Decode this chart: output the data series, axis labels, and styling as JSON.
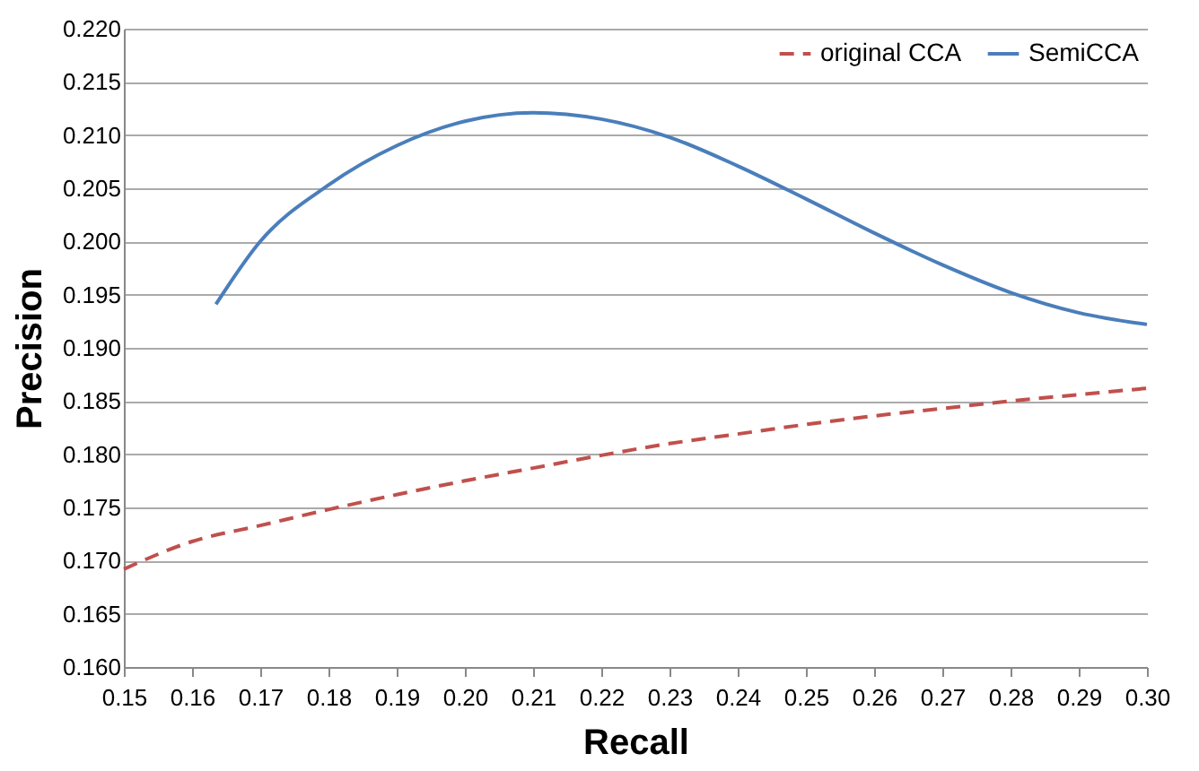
{
  "chart_data": {
    "type": "line",
    "xlabel": "Recall",
    "ylabel": "Precision",
    "xlim": [
      0.15,
      0.3
    ],
    "xticks": [
      {
        "value": 0.15,
        "label": "0.15"
      },
      {
        "value": 0.16,
        "label": "0.16"
      },
      {
        "value": 0.17,
        "label": "0.17"
      },
      {
        "value": 0.18,
        "label": "0.18"
      },
      {
        "value": 0.19,
        "label": "0.19"
      },
      {
        "value": 0.2,
        "label": "0.20"
      },
      {
        "value": 0.21,
        "label": "0.21"
      },
      {
        "value": 0.22,
        "label": "0.22"
      },
      {
        "value": 0.23,
        "label": "0.23"
      },
      {
        "value": 0.24,
        "label": "0.24"
      },
      {
        "value": 0.25,
        "label": "0.25"
      },
      {
        "value": 0.26,
        "label": "0.26"
      },
      {
        "value": 0.27,
        "label": "0.27"
      },
      {
        "value": 0.28,
        "label": "0.28"
      },
      {
        "value": 0.29,
        "label": "0.29"
      },
      {
        "value": 0.3,
        "label": "0.30"
      }
    ],
    "ylim": [
      0.16,
      0.22
    ],
    "yticks": [
      {
        "value": 0.16,
        "label": "0.160"
      },
      {
        "value": 0.165,
        "label": "0.165"
      },
      {
        "value": 0.17,
        "label": "0.170"
      },
      {
        "value": 0.175,
        "label": "0.175"
      },
      {
        "value": 0.18,
        "label": "0.180"
      },
      {
        "value": 0.185,
        "label": "0.185"
      },
      {
        "value": 0.19,
        "label": "0.190"
      },
      {
        "value": 0.195,
        "label": "0.195"
      },
      {
        "value": 0.2,
        "label": "0.200"
      },
      {
        "value": 0.205,
        "label": "0.205"
      },
      {
        "value": 0.21,
        "label": "0.210"
      },
      {
        "value": 0.215,
        "label": "0.215"
      },
      {
        "value": 0.22,
        "label": "0.220"
      }
    ],
    "grid": "y",
    "legend": "top right",
    "marker": "none",
    "series": [
      {
        "name": "original CCA",
        "color": "#c0504d",
        "line_style": "dashed",
        "x": [
          0.15,
          0.16,
          0.17,
          0.18,
          0.19,
          0.2,
          0.21,
          0.22,
          0.23,
          0.24,
          0.25,
          0.26,
          0.27,
          0.28,
          0.29,
          0.3
        ],
        "values": [
          0.1692,
          0.1718,
          0.1733,
          0.1748,
          0.1762,
          0.1775,
          0.1787,
          0.1799,
          0.181,
          0.1819,
          0.1828,
          0.1836,
          0.1843,
          0.185,
          0.1856,
          0.1862
        ]
      },
      {
        "name": "SemiCCA",
        "color": "#4a7ebb",
        "line_style": "solid",
        "x": [
          0.1635,
          0.17,
          0.18,
          0.19,
          0.2,
          0.21,
          0.22,
          0.23,
          0.24,
          0.25,
          0.26,
          0.27,
          0.28,
          0.29,
          0.3
        ],
        "values": [
          0.1941,
          0.2,
          0.2053,
          0.209,
          0.2113,
          0.2121,
          0.2115,
          0.2098,
          0.2071,
          0.204,
          0.2008,
          0.1978,
          0.1952,
          0.1933,
          0.1922
        ]
      }
    ]
  }
}
